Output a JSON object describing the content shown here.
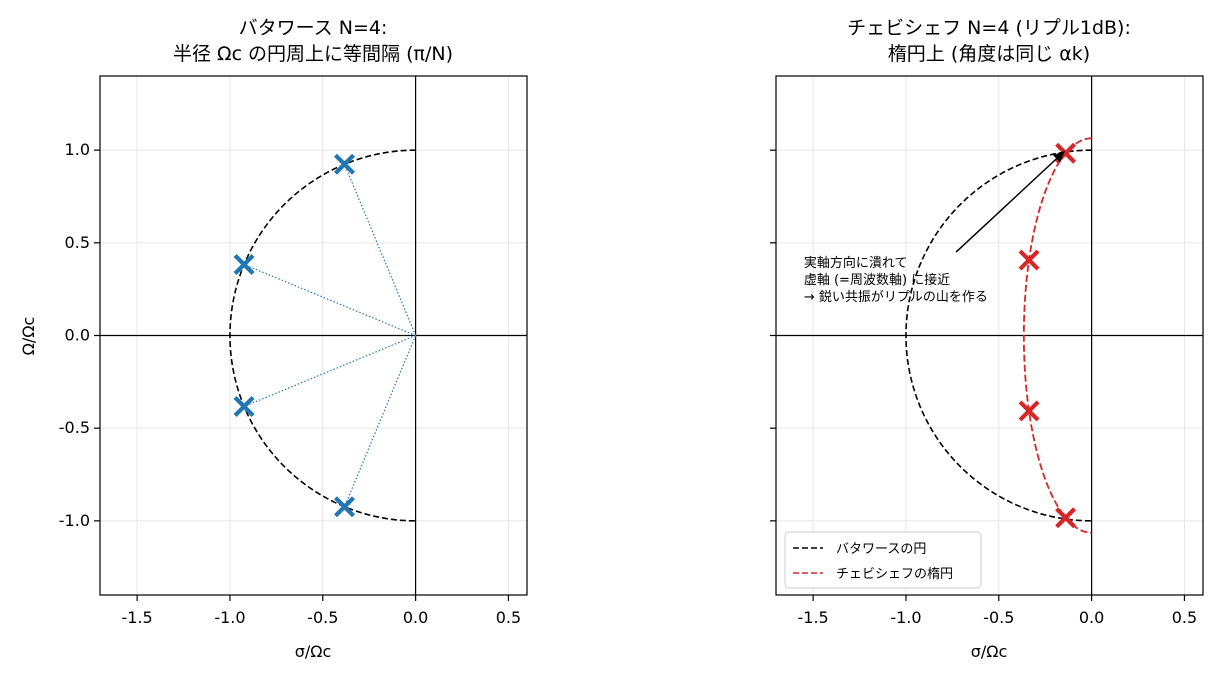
{
  "colors": {
    "butterworth": "#1f77b4",
    "chebyshev": "#d62728",
    "circle": "#000000",
    "grid": "#e6e6e6"
  },
  "chart_data": [
    {
      "type": "scatter",
      "title_line1": "バタワース N=4:",
      "title_line2": "半径 Ωc の円周上に等間隔 (π/N)",
      "xlabel": "σ/Ωc",
      "ylabel": "Ω/Ωc",
      "xlim": [
        -1.7,
        0.6
      ],
      "ylim": [
        -1.4,
        1.4
      ],
      "xticks": [
        -1.5,
        -1.0,
        -0.5,
        0.0,
        0.5
      ],
      "xtick_labels": [
        "-1.5",
        "-1.0",
        "-0.5",
        "0.0",
        "0.5"
      ],
      "yticks": [
        1.0,
        0.5,
        0.0,
        -0.5,
        -1.0
      ],
      "ytick_labels": [
        "1.0",
        "0.5",
        "0.0",
        "-0.5",
        "-1.0"
      ],
      "grid": true,
      "poles": {
        "x": [
          -0.383,
          -0.924,
          -0.924,
          -0.383
        ],
        "y": [
          0.924,
          0.383,
          -0.383,
          -0.924
        ]
      }
    },
    {
      "type": "scatter",
      "title_line1": "チェビシェフ N=4 (リプル1dB):",
      "title_line2": "楕円上 (角度は同じ αk)",
      "xlabel": "σ/Ωc",
      "xlim": [
        -1.7,
        0.6
      ],
      "ylim": [
        -1.4,
        1.4
      ],
      "xticks": [
        -1.5,
        -1.0,
        -0.5,
        0.0,
        0.5
      ],
      "xtick_labels": [
        "-1.5",
        "-1.0",
        "-0.5",
        "0.0",
        "0.5"
      ],
      "yticks": [
        1.0,
        0.5,
        0.0,
        -0.5,
        -1.0
      ],
      "grid": true,
      "ellipse": {
        "a": 0.365,
        "b": 1.064
      },
      "poles": {
        "x": [
          -0.14,
          -0.337,
          -0.337,
          -0.14
        ],
        "y": [
          0.983,
          0.407,
          -0.407,
          -0.983
        ]
      },
      "annotation": {
        "lines": [
          "実軸方向に潰れて",
          "虚軸 (=周波数軸) に接近",
          "→ 鋭い共振がリプルの山を作る"
        ],
        "text_x": -1.55,
        "text_y": 0.37,
        "arrow_from": [
          -0.73,
          0.45
        ],
        "arrow_to": [
          -0.15,
          0.99
        ]
      },
      "legend": {
        "position": "lower-left",
        "entries": [
          {
            "label": "バタワースの円",
            "style": "dashed-black"
          },
          {
            "label": "チェビシェフの楕円",
            "style": "dashed-red"
          }
        ]
      }
    }
  ]
}
